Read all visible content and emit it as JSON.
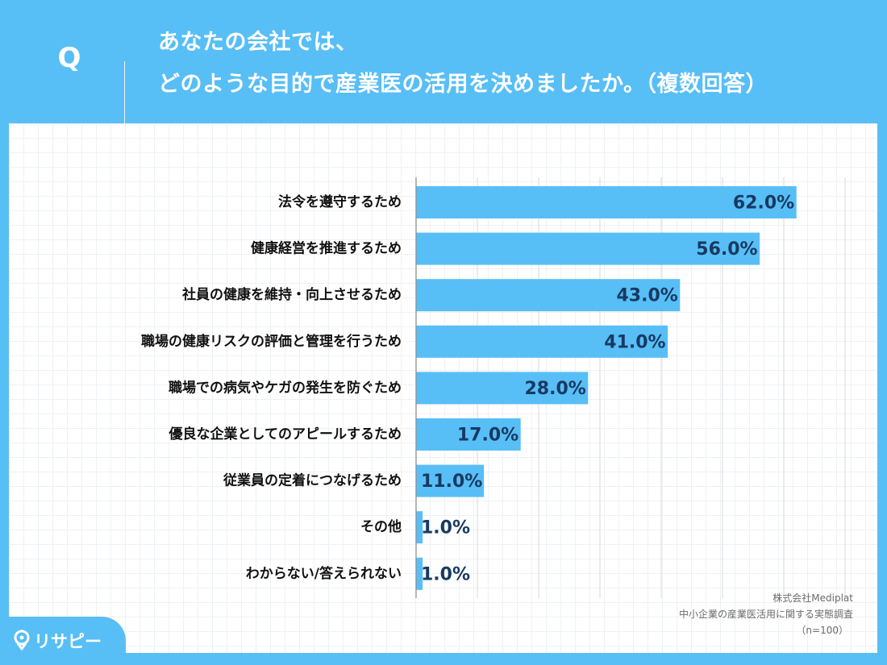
{
  "header": {
    "q_label": "Q",
    "title_line1": "あなたの会社では、",
    "title_line2": "どのような目的で産業医の活用を決めましたか。（複数回答）"
  },
  "chart_data": {
    "type": "bar",
    "orientation": "horizontal",
    "title": "あなたの会社では、どのような目的で産業医の活用を決めましたか。（複数回答）",
    "categories": [
      "法令を遵守するため",
      "健康経営を推進するため",
      "社員の健康を維持・向上させるため",
      "職場の健康リスクの評価と管理を行うため",
      "職場での病気やケガの発生を防ぐため",
      "優良な企業としてのアピールするため",
      "従業員の定着につなげるため",
      "その他",
      "わからない/答えられない"
    ],
    "values": [
      62.0,
      56.0,
      43.0,
      41.0,
      28.0,
      17.0,
      11.0,
      1.0,
      1.0
    ],
    "value_labels": [
      "62.0%",
      "56.0%",
      "43.0%",
      "41.0%",
      "28.0%",
      "17.0%",
      "11.0%",
      "1.0%",
      "1.0%"
    ],
    "xlim": [
      0,
      70
    ],
    "unit": "%",
    "grid": "vertical",
    "bar_color": "#58bef6"
  },
  "source": {
    "company": "株式会社Mediplat",
    "survey": "中小企業の産業医活用に関する実態調査",
    "sample": "（n=100）"
  },
  "logo": {
    "text": "リサピー"
  },
  "colors": {
    "background": "#58bef6",
    "panel": "#ffffff",
    "bar": "#58bef6",
    "value_text": "#173a62"
  }
}
